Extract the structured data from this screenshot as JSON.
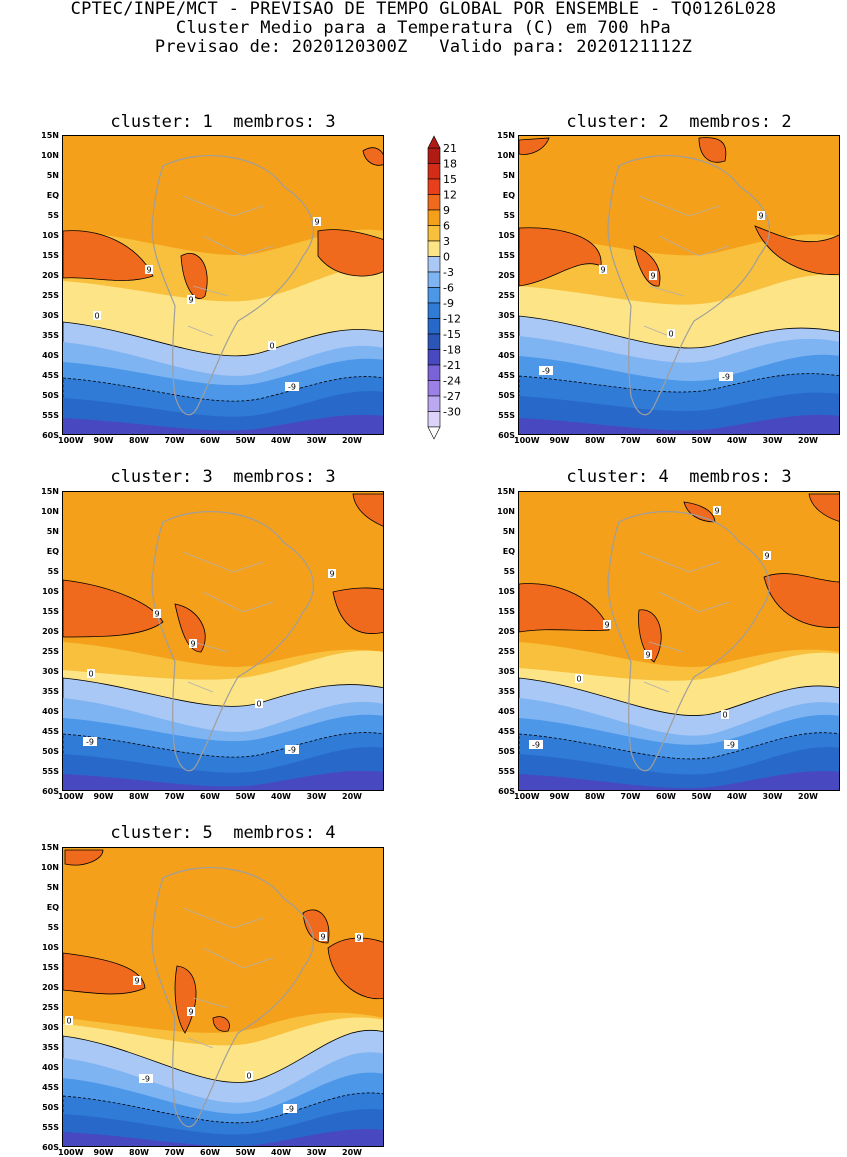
{
  "header": {
    "line1": "CPTEC/INPE/MCT - PREVISAO DE TEMPO GLOBAL POR ENSEMBLE - TQ0126L028",
    "line2": "Cluster Medio para a Temperatura (C) em 700 hPa",
    "line3": "Previsao de: 2020120300Z   Valido para: 2020121112Z"
  },
  "panels": [
    {
      "title": "cluster: 1  membros: 3"
    },
    {
      "title": "cluster: 2  membros: 2"
    },
    {
      "title": "cluster: 3  membros: 3"
    },
    {
      "title": "cluster: 4  membros: 3"
    },
    {
      "title": "cluster: 5  membros: 4"
    }
  ],
  "axes": {
    "y_ticks": [
      "15N",
      "10N",
      "5N",
      "EQ",
      "5S",
      "10S",
      "15S",
      "20S",
      "25S",
      "30S",
      "35S",
      "40S",
      "45S",
      "50S",
      "55S",
      "60S"
    ],
    "x_ticks": [
      "100W",
      "90W",
      "80W",
      "70W",
      "60W",
      "50W",
      "40W",
      "30W",
      "20W"
    ]
  },
  "colorbar": {
    "levels": [
      "21",
      "18",
      "15",
      "12",
      "9",
      "6",
      "3",
      "0",
      "-3",
      "-6",
      "-9",
      "-12",
      "-15",
      "-18",
      "-21",
      "-24",
      "-27",
      "-30"
    ],
    "colors": [
      "#b01b14",
      "#d32d18",
      "#e8401c",
      "#f06a1e",
      "#f5a01a",
      "#f8c03c",
      "#fde486",
      "#aac8f5",
      "#7eb4f2",
      "#4c97e8",
      "#2f7bd6",
      "#2868c8",
      "#2c55b8",
      "#4848c0",
      "#7a62d8",
      "#9b80e8",
      "#baa8f0",
      "#dcd2fa"
    ]
  },
  "contour_labels": {
    "nine": "9",
    "zero": "0",
    "neg_nine": "-9"
  }
}
